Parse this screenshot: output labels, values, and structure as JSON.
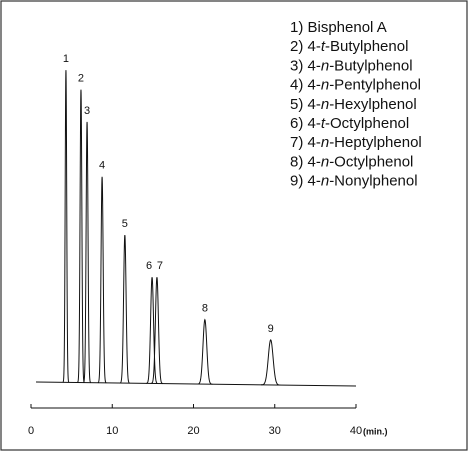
{
  "chart_data": {
    "type": "chromatogram",
    "x_label": "(min.)",
    "xlim": [
      0,
      40
    ],
    "xticks": [
      0,
      10,
      20,
      30,
      40
    ],
    "ylim": [
      0,
      100
    ],
    "peaks": [
      {
        "label": "1",
        "time": 4.3,
        "height": 97
      },
      {
        "label": "2",
        "time": 6.15,
        "height": 91
      },
      {
        "label": "3",
        "time": 6.9,
        "height": 81
      },
      {
        "label": "4",
        "time": 8.75,
        "height": 64
      },
      {
        "label": "5",
        "time": 11.55,
        "height": 46
      },
      {
        "label": "6",
        "time": 14.9,
        "height": 33
      },
      {
        "label": "7",
        "time": 15.5,
        "height": 33
      },
      {
        "label": "8",
        "time": 21.4,
        "height": 20
      },
      {
        "label": "9",
        "time": 29.5,
        "height": 14
      }
    ],
    "legend": [
      "1) Bisphenol A",
      "2) 4-t-Butylphenol",
      "3) 4-n-Butylphenol",
      "4) 4-n-Pentylphenol",
      "5) 4-n-Hexylphenol",
      "6) 4-t-Octylphenol",
      "7) 4-n-Heptylphenol",
      "8) 4-n-Octylphenol",
      "9) 4-n-Nonylphenol"
    ],
    "color": "#111111"
  }
}
